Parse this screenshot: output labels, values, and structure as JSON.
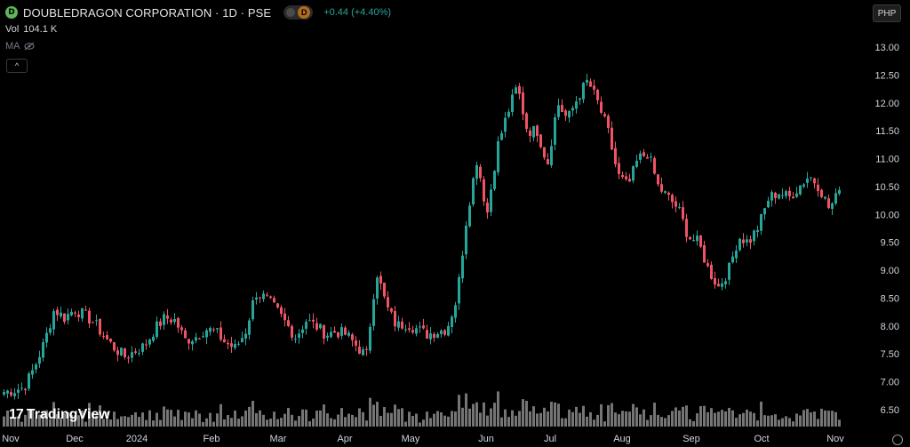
{
  "header": {
    "symbol_badge": "D",
    "title": "DOUBLEDRAGON CORPORATION · 1D · PSE",
    "data_badge": "D",
    "change": "+0.44 (+4.40%)",
    "volume_label": "Vol",
    "volume_value": "104.1 K",
    "indicator_label": "MA",
    "collapse_glyph": "^",
    "currency": "PHP"
  },
  "branding": {
    "logo_text": "TradingView"
  },
  "colors": {
    "up": "#26a69a",
    "down": "#ef5364",
    "volume": "#8a8a8a",
    "background": "#000000"
  },
  "chart_data": {
    "type": "candlestick",
    "symbol": "DOUBLEDRAGON CORPORATION",
    "interval": "1D",
    "exchange": "PSE",
    "currency": "PHP",
    "x_labels": [
      "Nov",
      "Dec",
      "2024",
      "Feb",
      "Mar",
      "Apr",
      "May",
      "Jun",
      "Jul",
      "Aug",
      "Sep",
      "Oct",
      "Nov"
    ],
    "y_ticks": [
      "6.50",
      "7.00",
      "7.50",
      "8.00",
      "8.50",
      "9.00",
      "9.50",
      "10.00",
      "10.50",
      "11.00",
      "11.50",
      "12.00",
      "12.50",
      "13.00"
    ],
    "ylim": [
      6.4,
      13.2
    ],
    "grid": false,
    "close_path": [
      6.82,
      6.85,
      6.9,
      7.25,
      7.7,
      8.3,
      8.15,
      8.3,
      8.2,
      8.05,
      7.8,
      7.6,
      7.45,
      7.55,
      7.65,
      7.95,
      8.15,
      8.1,
      7.75,
      7.8,
      7.95,
      7.9,
      7.7,
      7.6,
      7.9,
      8.6,
      8.5,
      8.3,
      8.05,
      7.8,
      8.1,
      8.0,
      7.85,
      7.9,
      7.85,
      7.65,
      7.45,
      9.0,
      8.35,
      8.0,
      8.05,
      7.95,
      7.85,
      7.9,
      7.95,
      8.5,
      10.0,
      11.0,
      10.0,
      11.2,
      11.8,
      12.3,
      11.5,
      11.5,
      10.9,
      12.0,
      11.7,
      12.1,
      12.4,
      12.0,
      11.5,
      10.7,
      10.5,
      11.0,
      11.1,
      10.5,
      10.3,
      10.1,
      9.6,
      9.5,
      9.0,
      8.7,
      9.0,
      9.6,
      9.5,
      9.8,
      10.3,
      10.4,
      10.3,
      10.5,
      10.7,
      10.5,
      10.1,
      10.4
    ],
    "last_close": 10.44,
    "last_change": 0.44,
    "last_change_pct": 4.4,
    "volume": {
      "label": "Vol",
      "last": "104.1 K"
    }
  }
}
